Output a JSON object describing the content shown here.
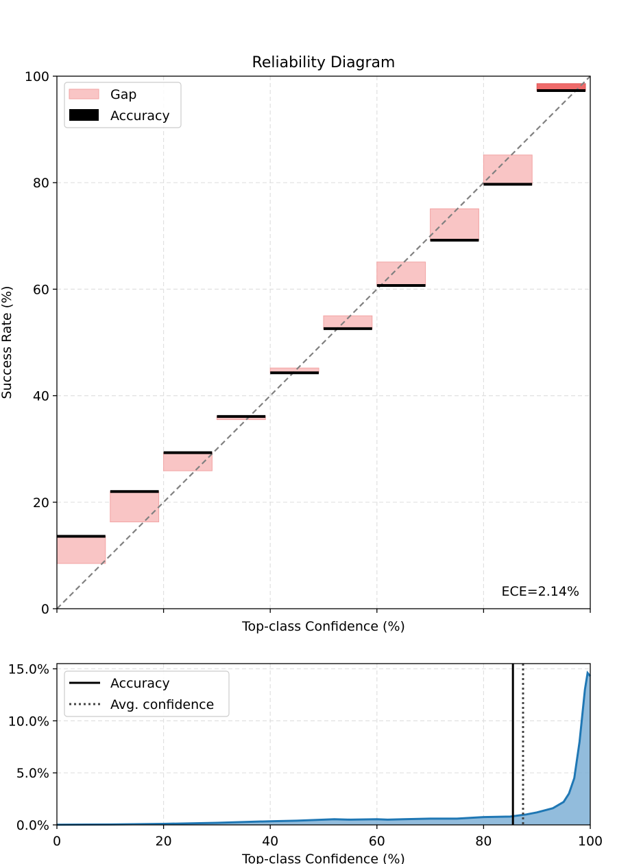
{
  "chart_data": [
    {
      "type": "bar",
      "title": "Reliability Diagram",
      "xlabel": "Top-class Confidence (%)",
      "ylabel": "Success Rate (%)",
      "xlim": [
        0,
        100
      ],
      "ylim": [
        0,
        100
      ],
      "grid": true,
      "legend_position": "top-left",
      "legend": [
        "Gap",
        "Accuracy"
      ],
      "annotation": "ECE=2.14%",
      "yticks": [
        "0",
        "20",
        "40",
        "60",
        "80",
        "100"
      ],
      "bins": [
        {
          "x_start": 0,
          "x_end": 9.1,
          "accuracy": 13.6,
          "confidence": 8.5
        },
        {
          "x_start": 10,
          "x_end": 19.1,
          "accuracy": 22.0,
          "confidence": 16.3
        },
        {
          "x_start": 20,
          "x_end": 29.1,
          "accuracy": 29.3,
          "confidence": 25.9
        },
        {
          "x_start": 30,
          "x_end": 39.1,
          "accuracy": 36.1,
          "confidence": 35.5
        },
        {
          "x_start": 40,
          "x_end": 49.1,
          "accuracy": 44.3,
          "confidence": 45.2
        },
        {
          "x_start": 50,
          "x_end": 59.1,
          "accuracy": 52.6,
          "confidence": 55.0
        },
        {
          "x_start": 60,
          "x_end": 69.1,
          "accuracy": 60.7,
          "confidence": 65.1
        },
        {
          "x_start": 70,
          "x_end": 79.1,
          "accuracy": 69.2,
          "confidence": 75.1
        },
        {
          "x_start": 80,
          "x_end": 89.1,
          "accuracy": 79.7,
          "confidence": 85.2
        },
        {
          "x_start": 90,
          "x_end": 99.1,
          "accuracy": 97.3,
          "confidence": 98.6
        }
      ],
      "colors": {
        "gap": "#f9c5c5",
        "gap_edge": "#f2a3a3",
        "gap_last": "#ee6a6a",
        "accuracy": "#000000",
        "diagonal": "#808080"
      }
    },
    {
      "type": "area",
      "xlabel": "Top-class Confidence (%)",
      "xlim": [
        0,
        100
      ],
      "ylim": [
        0,
        15.5
      ],
      "grid": true,
      "legend_position": "top-left",
      "legend": [
        "Accuracy",
        "Avg. confidence"
      ],
      "xticks": [
        "0",
        "20",
        "40",
        "60",
        "80",
        "100"
      ],
      "yticks": [
        "0.0%",
        "5.0%",
        "10.0%",
        "15.0%"
      ],
      "ytick_values": [
        0,
        5,
        10,
        15
      ],
      "accuracy_line": 85.5,
      "avg_confidence_line": 87.4,
      "x": [
        0,
        10,
        20,
        30,
        40,
        45,
        50,
        52,
        55,
        60,
        62,
        65,
        70,
        75,
        80,
        85,
        88,
        90,
        93,
        95,
        96,
        97,
        98,
        98.5,
        99,
        99.5,
        100
      ],
      "y": [
        0.02,
        0.04,
        0.1,
        0.2,
        0.35,
        0.4,
        0.5,
        0.55,
        0.5,
        0.55,
        0.5,
        0.55,
        0.6,
        0.6,
        0.75,
        0.8,
        1.0,
        1.2,
        1.6,
        2.2,
        3.0,
        4.5,
        8.0,
        10.5,
        13.0,
        14.6,
        14.3
      ],
      "colors": {
        "line": "#1f77b4",
        "fill": "#7fb0d6",
        "accuracy": "#000000",
        "avg_conf": "#444444"
      }
    }
  ]
}
